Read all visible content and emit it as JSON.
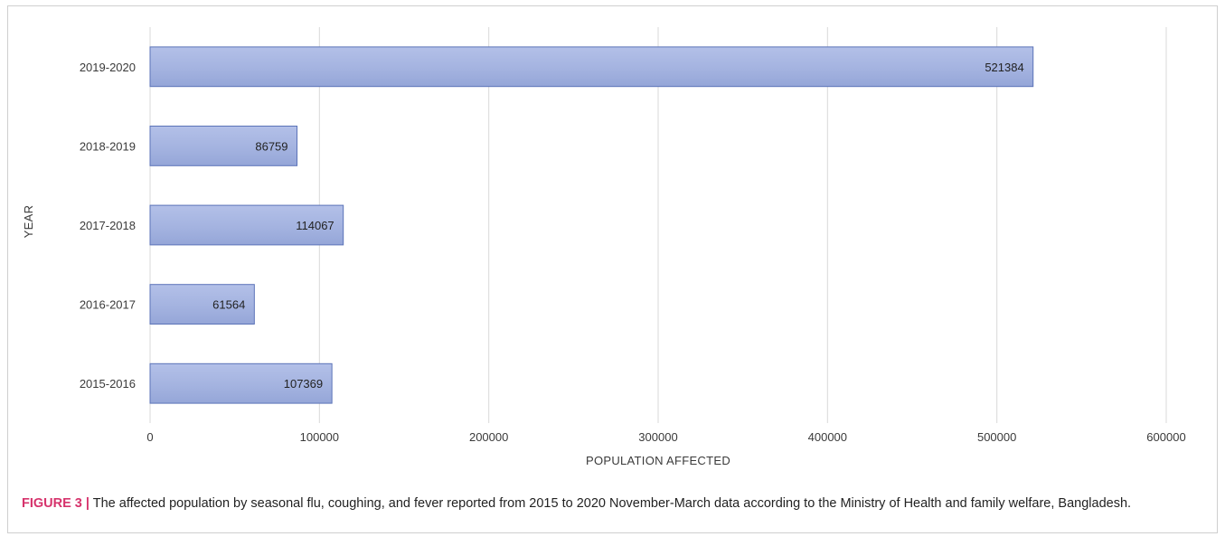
{
  "chart_data": {
    "type": "bar",
    "orientation": "horizontal",
    "categories": [
      "2015-2016",
      "2016-2017",
      "2017-2018",
      "2018-2019",
      "2019-2020"
    ],
    "values": [
      107369,
      61564,
      114067,
      86759,
      521384
    ],
    "data_labels": [
      "107369",
      "61564",
      "114067",
      "86759",
      "521384"
    ],
    "xlabel": "POPULATION AFFECTED",
    "ylabel": "YEAR",
    "xlim": [
      0,
      600000
    ],
    "xticks": [
      "0",
      "100000",
      "200000",
      "300000",
      "400000",
      "500000",
      "600000"
    ],
    "grid": "vertical",
    "bar_color": "#a4b3e0",
    "bar_border": "#5b73b8"
  },
  "caption": {
    "label": "FIGURE 3 |",
    "text": " The affected population by seasonal flu, coughing, and fever reported from 2015 to 2020 November-March data according to the Ministry of Health and family welfare, Bangladesh."
  }
}
